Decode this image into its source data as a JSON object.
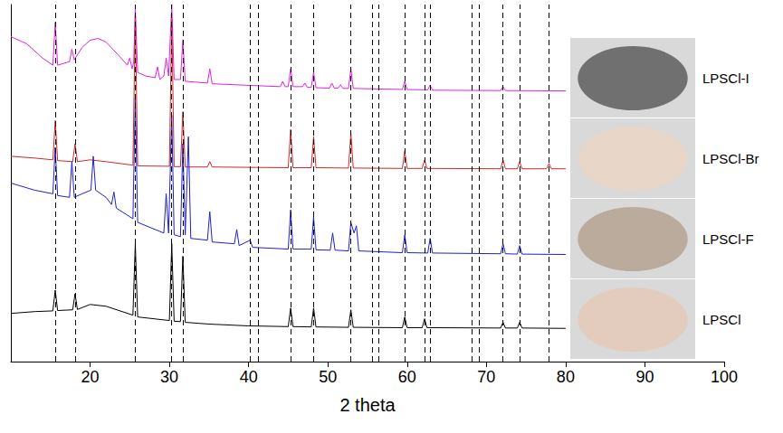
{
  "chart_data": {
    "type": "line",
    "x_label": "2 theta",
    "xlim": [
      10,
      100
    ],
    "xticks": [
      20,
      30,
      40,
      50,
      60,
      70,
      80,
      90,
      100
    ],
    "ylim": [
      0,
      100
    ],
    "grid": false,
    "tick_labels": "x",
    "reference_lines": [
      15.6,
      18.1,
      25.7,
      30.3,
      31.7,
      40.2,
      41.2,
      45.3,
      48.2,
      52.9,
      55.6,
      56.4,
      59.7,
      62.2,
      62.9,
      68.2,
      69.1,
      72.1,
      74.2,
      77.9
    ],
    "series": [
      {
        "name": "LPSCl-I",
        "color": "#e020e0",
        "x": [
          10,
          12,
          14,
          15.3,
          15.6,
          15.9,
          17.4,
          17.7,
          18,
          19,
          20,
          21,
          22,
          23.5,
          24.7,
          25,
          25.3,
          25.5,
          25.7,
          26,
          27,
          28.2,
          28.5,
          28.8,
          29.3,
          29.6,
          29.9,
          30.3,
          30.6,
          31.4,
          31.7,
          32,
          34.8,
          35.1,
          35.4,
          44,
          44.3,
          44.6,
          45,
          45.3,
          45.6,
          46.8,
          47.1,
          47.4,
          47.9,
          48.2,
          48.5,
          50.2,
          50.5,
          50.8,
          51.3,
          51.6,
          51.9,
          52.6,
          52.9,
          53.2,
          59.4,
          59.7,
          60,
          62.6,
          62.9,
          63.2,
          71.8,
          72.1,
          72.4,
          80
        ],
        "values": [
          91,
          89,
          85,
          83,
          95,
          83,
          84,
          87.5,
          84.5,
          88,
          90,
          90.5,
          89.5,
          86,
          83,
          85,
          82,
          84,
          99,
          81,
          80,
          79.5,
          82.5,
          79,
          80,
          85,
          80,
          100,
          79,
          79,
          90,
          78.5,
          78,
          82,
          77.8,
          77,
          78.5,
          77,
          77,
          82,
          77,
          77,
          78,
          76.8,
          76.8,
          81,
          76.7,
          76.6,
          78,
          76.6,
          76.6,
          77.5,
          76.5,
          76.5,
          82,
          76.5,
          76.2,
          78.5,
          76.2,
          76.1,
          77.5,
          76,
          75.9,
          77,
          75.9,
          75.8
        ]
      },
      {
        "name": "LPSCl-Br",
        "color": "#d02828",
        "x": [
          10,
          13,
          15.3,
          15.6,
          15.9,
          17.8,
          18.1,
          18.4,
          20,
          22,
          25.4,
          25.7,
          26,
          30,
          30.3,
          30.6,
          31.4,
          31.7,
          32,
          34.8,
          35.1,
          35.4,
          45,
          45.3,
          45.6,
          47.9,
          48.2,
          48.5,
          52.6,
          52.9,
          53.2,
          59.4,
          59.7,
          60,
          61.9,
          62.2,
          62.5,
          71.8,
          72.1,
          72.4,
          73.9,
          74.2,
          74.5,
          77.6,
          77.9,
          78.2,
          80
        ],
        "values": [
          57.5,
          57,
          56.5,
          67.5,
          56.3,
          56,
          61,
          56,
          56.5,
          56,
          55,
          97,
          54.8,
          54.7,
          96,
          54.6,
          54.6,
          70,
          54.5,
          54.5,
          56,
          54.5,
          54.3,
          65,
          54.3,
          54.3,
          63,
          54.3,
          54.2,
          64,
          54.2,
          54.1,
          59,
          54.1,
          54.1,
          56.5,
          54.1,
          54,
          56.5,
          54,
          54,
          56,
          54,
          54,
          55.5,
          54,
          54
        ]
      },
      {
        "name": "LPSCl-F",
        "color": "#1f1fd0",
        "x": [
          10,
          13,
          15.3,
          15.6,
          15.9,
          17.4,
          17.7,
          18,
          19,
          20.1,
          20.4,
          20.7,
          22,
          22.7,
          23,
          23.3,
          25.4,
          25.7,
          26,
          29.3,
          29.6,
          29.9,
          30.3,
          30.6,
          31.4,
          31.7,
          32,
          32.4,
          32.7,
          34.8,
          35.1,
          35.4,
          38.2,
          38.5,
          38.8,
          40.2,
          40.5,
          45,
          45.3,
          45.6,
          47.9,
          48.2,
          48.5,
          50.3,
          50.6,
          50.9,
          52.6,
          52.9,
          53.3,
          53.6,
          53.9,
          59.4,
          59.7,
          60,
          62.6,
          62.9,
          63.2,
          71.8,
          72.1,
          72.4,
          73.9,
          74.2,
          74.5,
          80
        ],
        "values": [
          50,
          48,
          47,
          60,
          46.5,
          46,
          56,
          46,
          47,
          48,
          57.5,
          48,
          46,
          44,
          47.5,
          43,
          40,
          74,
          39,
          36,
          47,
          36,
          69,
          35.5,
          35,
          61,
          35.5,
          63,
          34.5,
          34,
          42,
          33.5,
          33,
          37,
          32.5,
          34,
          32,
          31.5,
          42.5,
          31.5,
          31.5,
          40.5,
          31.3,
          31.2,
          36,
          31.2,
          31,
          39,
          36,
          38,
          31,
          30.5,
          35.5,
          30.5,
          30.4,
          34.5,
          30.4,
          30.2,
          33,
          30.2,
          30.1,
          32.5,
          30.1,
          30
        ]
      },
      {
        "name": "LPSCl",
        "color": "#000000",
        "x": [
          10,
          13,
          15.3,
          15.6,
          15.9,
          17.8,
          18.1,
          18.4,
          20,
          22,
          25.4,
          25.7,
          26,
          30,
          30.3,
          30.6,
          31.4,
          31.7,
          32,
          35,
          40,
          45,
          45.3,
          45.6,
          47.9,
          48.2,
          48.5,
          52.6,
          52.9,
          53.2,
          59.4,
          59.7,
          60,
          61.9,
          62.2,
          62.5,
          71.8,
          72.1,
          72.4,
          73.9,
          74.2,
          74.5,
          80
        ],
        "values": [
          13.5,
          14,
          14.2,
          20,
          14.3,
          14.5,
          19,
          14.6,
          16,
          15.5,
          13,
          33,
          12.5,
          11.5,
          33,
          11.3,
          11.2,
          29.5,
          11,
          10.5,
          10,
          9.8,
          15,
          9.8,
          9.7,
          15,
          9.7,
          9.6,
          14.5,
          9.6,
          9.5,
          12.5,
          9.5,
          9.5,
          12,
          9.5,
          9.4,
          11,
          9.4,
          9.4,
          11,
          9.4,
          9.3
        ]
      }
    ]
  }
}
